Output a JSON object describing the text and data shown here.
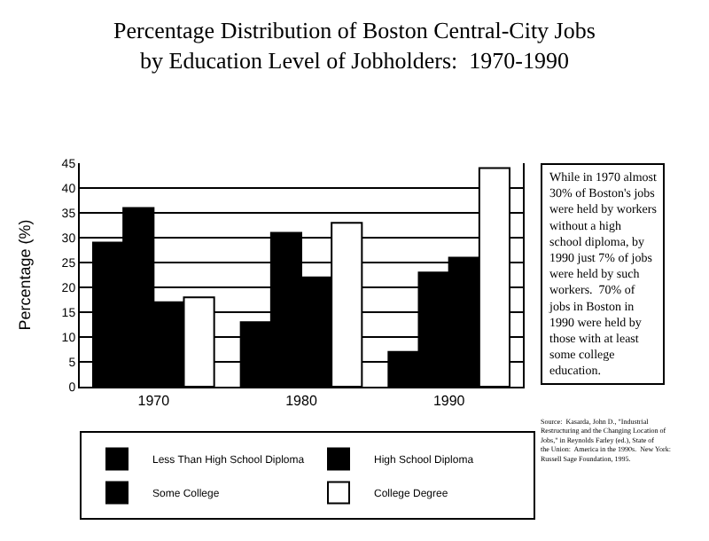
{
  "chart_data": {
    "type": "bar",
    "title": "Percentage Distribution of Boston Central-City Jobs by Education Level of Jobholders:  1970-1990",
    "ylabel": "Percentage (%)",
    "categories": [
      "1970",
      "1980",
      "1990"
    ],
    "series": [
      {
        "name": "Less Than High School Diploma",
        "color": "#000000",
        "values": [
          29,
          13,
          7
        ]
      },
      {
        "name": "High School Diploma",
        "color": "#000000",
        "values": [
          36,
          31,
          23
        ]
      },
      {
        "name": "Some College",
        "color": "#000000",
        "values": [
          17,
          22,
          26
        ]
      },
      {
        "name": "College Degree",
        "color": "#ffffff",
        "values": [
          18,
          33,
          44
        ]
      }
    ],
    "ylim": [
      0,
      45
    ],
    "yticks": [
      0,
      5,
      10,
      15,
      20,
      25,
      30,
      35,
      40,
      45
    ],
    "grid": "y",
    "legend": "bottom",
    "annotations": [
      "While in 1970 almost 30% of Boston's jobs were held by workers without a high school diploma, by 1990 just 7% of jobs were held by such workers.  70% of jobs in Boston in 1990 were held by those with at least some college education.",
      "Source:  Kasarda, John D., \"Industrial Restructuring and the Changing Location of Jobs,\" in Reynolds Farley (ed.), State of the Union:  America in the 1990s.  New York: Russell Sage Foundation, 1995."
    ]
  }
}
